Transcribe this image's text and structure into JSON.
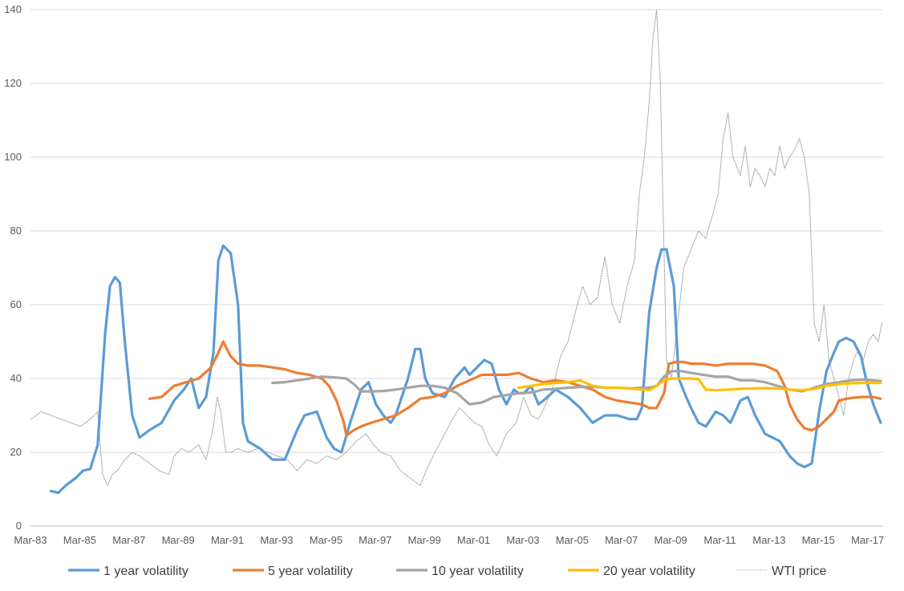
{
  "chart_data": {
    "type": "line",
    "title": "",
    "xlabel": "",
    "ylabel": "",
    "ylim": [
      0,
      140
    ],
    "xlim": [
      1983.17,
      2017.8
    ],
    "grid": true,
    "legend_position": "bottom",
    "y_ticks": [
      "0",
      "20",
      "40",
      "60",
      "80",
      "100",
      "120",
      "140"
    ],
    "y_tick_values": [
      0,
      20,
      40,
      60,
      80,
      100,
      120,
      140
    ],
    "x_ticks": [
      "Mar-83",
      "Mar-85",
      "Mar-87",
      "Mar-89",
      "Mar-91",
      "Mar-93",
      "Mar-95",
      "Mar-97",
      "Mar-99",
      "Mar-01",
      "Mar-03",
      "Mar-05",
      "Mar-07",
      "Mar-09",
      "Mar-11",
      "Mar-13",
      "Mar-15",
      "Mar-17"
    ],
    "x_tick_values": [
      1983.17,
      1985.17,
      1987.17,
      1989.17,
      1991.17,
      1993.17,
      1995.17,
      1997.17,
      1999.17,
      2001.17,
      2003.17,
      2005.17,
      2007.17,
      2009.17,
      2011.17,
      2013.17,
      2015.17,
      2017.17
    ],
    "series": [
      {
        "name": "1 year volatility",
        "color": "#5B9BD5",
        "style": "solid",
        "x": [
          1984.0,
          1984.3,
          1984.6,
          1985.0,
          1985.3,
          1985.6,
          1985.9,
          1986.2,
          1986.4,
          1986.6,
          1986.8,
          1987.0,
          1987.3,
          1987.6,
          1988.0,
          1988.5,
          1989.0,
          1989.4,
          1989.7,
          1990.0,
          1990.3,
          1990.6,
          1990.8,
          1991.0,
          1991.3,
          1991.6,
          1991.8,
          1992.0,
          1992.5,
          1993.0,
          1993.5,
          1994.0,
          1994.3,
          1994.8,
          1995.2,
          1995.5,
          1995.8,
          1996.2,
          1996.6,
          1996.9,
          1997.2,
          1997.5,
          1997.8,
          1998.0,
          1998.5,
          1998.8,
          1999.0,
          1999.2,
          1999.5,
          2000.0,
          2000.4,
          2000.8,
          2001.0,
          2001.3,
          2001.6,
          2001.9,
          2002.2,
          2002.5,
          2002.8,
          2003.0,
          2003.2,
          2003.5,
          2003.8,
          2004.0,
          2004.5,
          2005.0,
          2005.5,
          2006.0,
          2006.5,
          2007.0,
          2007.5,
          2007.8,
          2008.0,
          2008.3,
          2008.6,
          2008.8,
          2009.0,
          2009.3,
          2009.5,
          2009.8,
          2010.0,
          2010.3,
          2010.6,
          2011.0,
          2011.3,
          2011.6,
          2012.0,
          2012.3,
          2012.6,
          2013.0,
          2013.3,
          2013.6,
          2014.0,
          2014.3,
          2014.6,
          2014.9,
          2015.2,
          2015.5,
          2015.8,
          2016.0,
          2016.3,
          2016.6,
          2016.9,
          2017.1,
          2017.4,
          2017.7
        ],
        "values": [
          9.5,
          9,
          11,
          13,
          15,
          15.5,
          22,
          52,
          65,
          67.5,
          66,
          50,
          30,
          24,
          26,
          28,
          34,
          37,
          40,
          32,
          35,
          47,
          72,
          76,
          74,
          60,
          28,
          23,
          21,
          18,
          18,
          26,
          30,
          31,
          24,
          21,
          20,
          29,
          37,
          39,
          33,
          30,
          28,
          30,
          40,
          48,
          48,
          40,
          36,
          35,
          40,
          43,
          41,
          43,
          45,
          44,
          37,
          33,
          37,
          36,
          36,
          38,
          33,
          34,
          37,
          35,
          32,
          28,
          30,
          30,
          29,
          29,
          32,
          58,
          70,
          75,
          75,
          65,
          40,
          35,
          32,
          28,
          27,
          31,
          30,
          28,
          34,
          35,
          30,
          25,
          24,
          23,
          19,
          17,
          16,
          17,
          31,
          42,
          47,
          50,
          51,
          50,
          46,
          40,
          33,
          28
        ]
      },
      {
        "name": "5 year volatility",
        "color": "#ED7D31",
        "style": "solid",
        "x": [
          1988.0,
          1988.5,
          1989.0,
          1989.5,
          1990.0,
          1990.5,
          1990.8,
          1991.0,
          1991.3,
          1991.6,
          1992.0,
          1992.5,
          1993.0,
          1993.5,
          1994.0,
          1994.5,
          1995.0,
          1995.3,
          1995.6,
          1995.9,
          1996.0,
          1996.3,
          1996.6,
          1997.0,
          1997.5,
          1998.0,
          1998.5,
          1999.0,
          1999.5,
          2000.0,
          2000.5,
          2001.0,
          2001.5,
          2002.0,
          2002.5,
          2003.0,
          2003.5,
          2004.0,
          2004.5,
          2005.0,
          2005.5,
          2006.0,
          2006.5,
          2007.0,
          2007.5,
          2008.0,
          2008.3,
          2008.6,
          2008.9,
          2009.1,
          2009.4,
          2009.7,
          2010.0,
          2010.5,
          2011.0,
          2011.5,
          2012.0,
          2012.5,
          2013.0,
          2013.5,
          2013.8,
          2014.0,
          2014.3,
          2014.6,
          2014.9,
          2015.2,
          2015.5,
          2015.8,
          2016.0,
          2016.3,
          2016.6,
          2017.0,
          2017.4,
          2017.7
        ],
        "values": [
          34.5,
          35,
          38,
          39,
          40,
          43,
          47,
          50,
          46,
          44,
          43.5,
          43.5,
          43,
          42.5,
          41.5,
          41,
          40,
          38,
          34,
          28,
          24.5,
          26,
          27,
          28,
          29,
          30,
          32,
          34.5,
          35,
          36,
          38,
          39.5,
          41,
          41,
          41,
          41.5,
          40,
          39,
          39.5,
          39,
          38,
          37,
          35,
          34,
          33.5,
          33,
          32,
          32,
          36,
          44,
          44.5,
          44.5,
          44,
          44,
          43.5,
          44,
          44,
          44,
          43.5,
          42,
          38,
          33,
          29,
          26.5,
          26,
          27,
          29,
          31,
          34,
          34.5,
          34.8,
          35,
          35,
          34.5
        ]
      },
      {
        "name": "10 year volatility",
        "color": "#A5A5A5",
        "style": "solid",
        "x": [
          1993.0,
          1993.5,
          1994.0,
          1994.5,
          1995.0,
          1995.5,
          1996.0,
          1996.3,
          1996.6,
          1997.0,
          1997.5,
          1998.0,
          1998.5,
          1999.0,
          1999.5,
          2000.0,
          2000.5,
          2001.0,
          2001.5,
          2002.0,
          2002.5,
          2003.0,
          2003.5,
          2004.0,
          2004.5,
          2005.0,
          2005.5,
          2006.0,
          2006.5,
          2007.0,
          2007.5,
          2008.0,
          2008.3,
          2008.6,
          2008.9,
          2009.2,
          2009.6,
          2010.0,
          2010.5,
          2011.0,
          2011.5,
          2012.0,
          2012.5,
          2013.0,
          2013.5,
          2014.0,
          2014.5,
          2015.0,
          2015.5,
          2016.0,
          2016.5,
          2017.0,
          2017.4,
          2017.7
        ],
        "values": [
          38.8,
          39,
          39.5,
          40,
          40.5,
          40.3,
          40,
          38.5,
          36.5,
          36.5,
          36.6,
          37,
          37.5,
          38,
          38,
          37.5,
          36,
          33,
          33.5,
          35,
          35.5,
          36,
          36.2,
          37,
          37.2,
          37.5,
          37.7,
          37.8,
          37.5,
          37.5,
          37.3,
          37.5,
          37.5,
          38,
          40.5,
          42,
          42,
          41.5,
          41,
          40.5,
          40.5,
          39.5,
          39.5,
          39,
          38,
          37,
          36.5,
          37.5,
          38.5,
          39,
          39.5,
          39.7,
          39.5,
          39.3
        ]
      },
      {
        "name": "20 year volatility",
        "color": "#FFC000",
        "style": "solid",
        "x": [
          2003.0,
          2003.5,
          2004.0,
          2004.5,
          2005.0,
          2005.5,
          2006.0,
          2006.5,
          2007.0,
          2007.5,
          2008.0,
          2008.3,
          2008.6,
          2008.9,
          2009.2,
          2009.5,
          2010.0,
          2010.3,
          2010.6,
          2011.0,
          2011.5,
          2012.0,
          2012.5,
          2013.0,
          2013.5,
          2014.0,
          2014.5,
          2015.0,
          2015.5,
          2016.0,
          2016.5,
          2017.0,
          2017.4,
          2017.7
        ],
        "values": [
          37.5,
          38,
          38.5,
          38.8,
          39,
          39.5,
          38,
          37.5,
          37.5,
          37.3,
          37,
          36.8,
          38,
          39.5,
          40,
          40,
          40,
          39.8,
          37,
          36.8,
          37,
          37.2,
          37.3,
          37.4,
          37.3,
          37,
          36.8,
          37.2,
          38,
          38.5,
          38.7,
          38.8,
          38.8,
          38.8
        ]
      },
      {
        "name": "WTI price",
        "color": "#A6A6A6",
        "style": "dotted",
        "x": [
          1983.2,
          1983.6,
          1984.0,
          1984.4,
          1984.8,
          1985.2,
          1985.6,
          1985.9,
          1986.1,
          1986.3,
          1986.5,
          1986.7,
          1987.0,
          1987.3,
          1987.6,
          1988.0,
          1988.4,
          1988.8,
          1989.0,
          1989.3,
          1989.6,
          1990.0,
          1990.3,
          1990.6,
          1990.75,
          1990.9,
          1991.1,
          1991.3,
          1991.6,
          1992.0,
          1992.4,
          1992.8,
          1993.2,
          1993.6,
          1994.0,
          1994.4,
          1994.8,
          1995.2,
          1995.6,
          1996.0,
          1996.4,
          1996.8,
          1997.1,
          1997.4,
          1997.8,
          1998.2,
          1998.6,
          1999.0,
          1999.3,
          1999.6,
          2000.0,
          2000.3,
          2000.6,
          2000.9,
          2001.2,
          2001.5,
          2001.8,
          2002.1,
          2002.5,
          2002.9,
          2003.2,
          2003.5,
          2003.8,
          2004.1,
          2004.4,
          2004.7,
          2005.0,
          2005.3,
          2005.6,
          2005.9,
          2006.2,
          2006.5,
          2006.8,
          2007.1,
          2007.4,
          2007.7,
          2007.9,
          2008.1,
          2008.3,
          2008.45,
          2008.6,
          2008.75,
          2008.9,
          2009.0,
          2009.2,
          2009.4,
          2009.7,
          2010.0,
          2010.3,
          2010.6,
          2010.9,
          2011.1,
          2011.3,
          2011.5,
          2011.7,
          2012.0,
          2012.2,
          2012.4,
          2012.6,
          2012.8,
          2013.0,
          2013.2,
          2013.4,
          2013.6,
          2013.8,
          2014.0,
          2014.2,
          2014.4,
          2014.6,
          2014.8,
          2015.0,
          2015.2,
          2015.4,
          2015.6,
          2015.8,
          2016.0,
          2016.2,
          2016.4,
          2016.6,
          2016.8,
          2017.0,
          2017.2,
          2017.4,
          2017.6,
          2017.75
        ],
        "values": [
          29,
          31,
          30,
          29,
          28,
          27,
          29,
          31,
          14,
          11,
          14,
          15,
          18,
          20,
          19,
          17,
          15,
          14,
          19,
          21,
          20,
          22,
          18,
          27,
          35,
          31,
          20,
          20,
          21,
          20,
          21,
          20,
          19,
          18,
          15,
          18,
          17,
          19,
          18,
          20,
          23,
          25,
          22,
          20,
          19,
          15,
          13,
          11,
          16,
          20,
          25,
          29,
          32,
          30,
          28,
          27,
          22,
          19,
          25,
          28,
          35,
          30,
          29,
          33,
          38,
          46,
          50,
          58,
          65,
          60,
          62,
          73,
          60,
          55,
          65,
          72,
          90,
          100,
          115,
          132,
          140,
          120,
          75,
          45,
          40,
          52,
          70,
          75,
          80,
          78,
          85,
          90,
          105,
          112,
          100,
          95,
          103,
          92,
          97,
          95,
          92,
          97,
          95,
          103,
          97,
          100,
          102,
          105,
          100,
          90,
          55,
          50,
          60,
          45,
          40,
          35,
          30,
          40,
          45,
          48,
          45,
          50,
          52,
          50,
          55
        ]
      }
    ]
  }
}
